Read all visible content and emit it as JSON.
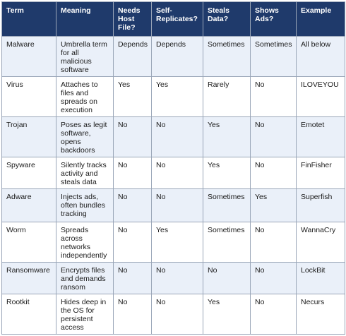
{
  "table": {
    "headers": [
      "Term",
      "Meaning",
      "Needs Host File?",
      "Self-Replicates?",
      "Steals Data?",
      "Shows Ads?",
      "Example"
    ],
    "rows": [
      [
        "Malware",
        "Umbrella term for all malicious software",
        "Depends",
        "Depends",
        "Sometimes",
        "Sometimes",
        "All below"
      ],
      [
        "Virus",
        "Attaches to files and spreads on execution",
        "Yes",
        "Yes",
        "Rarely",
        "No",
        "ILOVEYOU"
      ],
      [
        "Trojan",
        "Poses as legit software, opens backdoors",
        "No",
        "No",
        "Yes",
        "No",
        "Emotet"
      ],
      [
        "Spyware",
        "Silently tracks activity and steals data",
        "No",
        "No",
        "Yes",
        "No",
        "FinFisher"
      ],
      [
        "Adware",
        "Injects ads, often bundles tracking",
        "No",
        "No",
        "Sometimes",
        "Yes",
        "Superfish"
      ],
      [
        "Worm",
        "Spreads across networks independently",
        "No",
        "Yes",
        "Sometimes",
        "No",
        "WannaCry"
      ],
      [
        "Ransomware",
        "Encrypts files and demands ransom",
        "No",
        "No",
        "No",
        "No",
        "LockBit"
      ],
      [
        "Rootkit",
        "Hides deep in the OS for persistent access",
        "No",
        "No",
        "Yes",
        "No",
        "Necurs"
      ]
    ]
  }
}
